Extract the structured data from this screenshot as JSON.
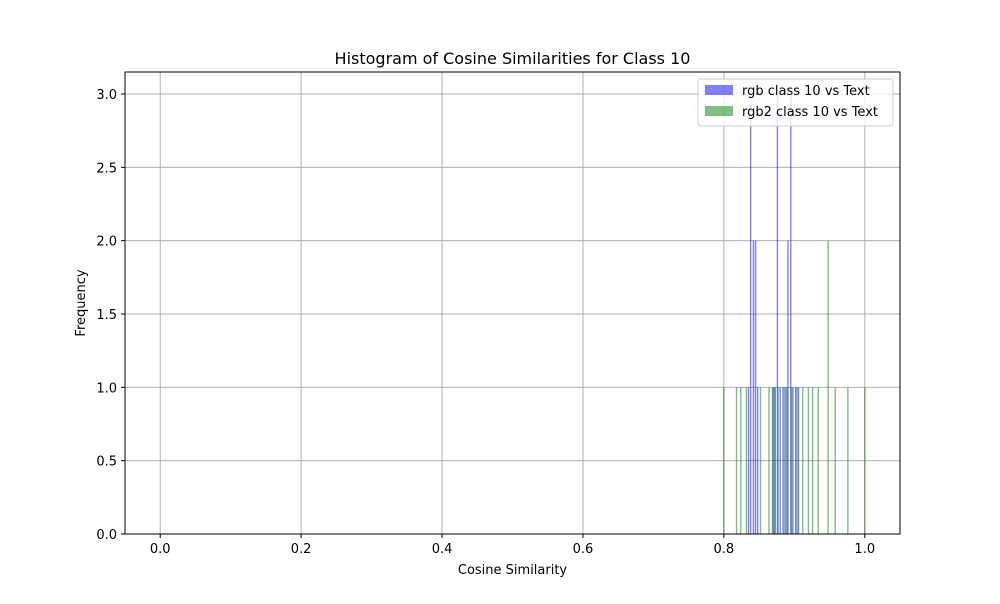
{
  "chart_data": {
    "type": "bar",
    "title": "Histogram of Cosine Similarities for Class 10",
    "xlabel": "Cosine Similarity",
    "ylabel": "Frequency",
    "xlim": [
      -0.05,
      1.05
    ],
    "ylim": [
      0,
      3.15
    ],
    "xticks": [
      0.0,
      0.2,
      0.4,
      0.6,
      0.8,
      1.0
    ],
    "xtick_labels": [
      "0.0",
      "0.2",
      "0.4",
      "0.6",
      "0.8",
      "1.0"
    ],
    "yticks": [
      0.0,
      0.5,
      1.0,
      1.5,
      2.0,
      2.5,
      3.0
    ],
    "ytick_labels": [
      "0.0",
      "0.5",
      "1.0",
      "1.5",
      "2.0",
      "2.5",
      "3.0"
    ],
    "grid": true,
    "legend_position": "top-right",
    "series": [
      {
        "name": "rgb class 10 vs Text",
        "color": "#0000ff",
        "alpha": 0.5,
        "bins": [
          {
            "x": 0.835,
            "count": 1
          },
          {
            "x": 0.838,
            "count": 3
          },
          {
            "x": 0.842,
            "count": 2
          },
          {
            "x": 0.845,
            "count": 2
          },
          {
            "x": 0.848,
            "count": 1
          },
          {
            "x": 0.87,
            "count": 1
          },
          {
            "x": 0.872,
            "count": 1
          },
          {
            "x": 0.876,
            "count": 3
          },
          {
            "x": 0.88,
            "count": 1
          },
          {
            "x": 0.884,
            "count": 1
          },
          {
            "x": 0.888,
            "count": 1
          },
          {
            "x": 0.891,
            "count": 2
          },
          {
            "x": 0.895,
            "count": 3
          },
          {
            "x": 0.898,
            "count": 1
          },
          {
            "x": 0.902,
            "count": 1
          },
          {
            "x": 0.906,
            "count": 1
          }
        ]
      },
      {
        "name": "rgb2 class 10 vs Text",
        "color": "#008000",
        "alpha": 0.5,
        "bins": [
          {
            "x": 0.8,
            "count": 1
          },
          {
            "x": 0.818,
            "count": 1
          },
          {
            "x": 0.824,
            "count": 1
          },
          {
            "x": 0.832,
            "count": 1
          },
          {
            "x": 0.852,
            "count": 1
          },
          {
            "x": 0.864,
            "count": 1
          },
          {
            "x": 0.869,
            "count": 1
          },
          {
            "x": 0.873,
            "count": 1
          },
          {
            "x": 0.877,
            "count": 1
          },
          {
            "x": 0.886,
            "count": 1
          },
          {
            "x": 0.89,
            "count": 1
          },
          {
            "x": 0.896,
            "count": 1
          },
          {
            "x": 0.904,
            "count": 1
          },
          {
            "x": 0.912,
            "count": 1
          },
          {
            "x": 0.92,
            "count": 1
          },
          {
            "x": 0.926,
            "count": 1
          },
          {
            "x": 0.934,
            "count": 1
          },
          {
            "x": 0.948,
            "count": 2
          },
          {
            "x": 0.958,
            "count": 1
          },
          {
            "x": 0.976,
            "count": 1
          },
          {
            "x": 1.0,
            "count": 1
          }
        ]
      }
    ]
  }
}
